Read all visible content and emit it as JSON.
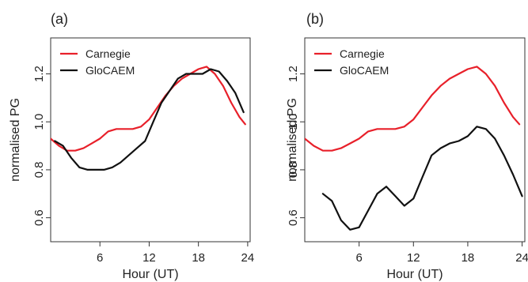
{
  "chart_data": [
    {
      "type": "line",
      "panel_label": "(a)",
      "xlabel": "Hour (UT)",
      "ylabel": "normalised PG",
      "xlim": [
        0,
        24.3
      ],
      "ylim": [
        0.5,
        1.35
      ],
      "xticks": [
        6,
        12,
        18,
        24
      ],
      "yticks": [
        0.6,
        0.8,
        1.0,
        1.2
      ],
      "xtick_labels": [
        "6",
        "12",
        "18",
        "24"
      ],
      "ytick_labels": [
        "0.6",
        "0.8",
        "1.0",
        "1.2"
      ],
      "legend_position": "top-left",
      "grid": false,
      "series": [
        {
          "name": "Carnegie",
          "color": "#e8202a",
          "x": [
            0,
            1,
            2,
            3,
            4,
            5,
            6,
            7,
            8,
            9,
            10,
            11,
            12,
            13,
            14,
            15,
            16,
            17,
            18,
            19,
            20,
            21,
            22,
            23,
            23.7
          ],
          "y": [
            0.93,
            0.9,
            0.88,
            0.88,
            0.89,
            0.91,
            0.93,
            0.96,
            0.97,
            0.97,
            0.97,
            0.98,
            1.01,
            1.06,
            1.11,
            1.15,
            1.18,
            1.2,
            1.22,
            1.23,
            1.2,
            1.15,
            1.08,
            1.02,
            0.99
          ]
        },
        {
          "name": "GloCAEM",
          "color": "#111111",
          "x": [
            0.5,
            1.5,
            2.5,
            3.5,
            4.5,
            5.5,
            6.5,
            7.5,
            8.5,
            9.5,
            10.5,
            11.5,
            12.5,
            13.5,
            14.5,
            15.5,
            16.5,
            17.5,
            18.5,
            19.5,
            20.5,
            21.5,
            22.5,
            23.5
          ],
          "y": [
            0.92,
            0.9,
            0.85,
            0.81,
            0.8,
            0.8,
            0.8,
            0.81,
            0.83,
            0.86,
            0.89,
            0.92,
            1.0,
            1.08,
            1.13,
            1.18,
            1.2,
            1.2,
            1.2,
            1.22,
            1.21,
            1.17,
            1.12,
            1.04
          ]
        }
      ]
    },
    {
      "type": "line",
      "panel_label": "(b)",
      "xlabel": "Hour (UT)",
      "ylabel": "normalised PG",
      "xlim": [
        0,
        24.3
      ],
      "ylim": [
        0.5,
        1.35
      ],
      "xticks": [
        6,
        12,
        18,
        24
      ],
      "yticks": [
        0.6,
        0.8,
        1.0,
        1.2
      ],
      "xtick_labels": [
        "6",
        "12",
        "18",
        "24"
      ],
      "ytick_labels": [
        "0.6",
        "0.8",
        "1.0",
        "1.2"
      ],
      "legend_position": "top-left",
      "grid": false,
      "series": [
        {
          "name": "Carnegie",
          "color": "#e8202a",
          "x": [
            0,
            1,
            2,
            3,
            4,
            5,
            6,
            7,
            8,
            9,
            10,
            11,
            12,
            13,
            14,
            15,
            16,
            17,
            18,
            19,
            20,
            21,
            22,
            23,
            23.7
          ],
          "y": [
            0.93,
            0.9,
            0.88,
            0.88,
            0.89,
            0.91,
            0.93,
            0.96,
            0.97,
            0.97,
            0.97,
            0.98,
            1.01,
            1.06,
            1.11,
            1.15,
            1.18,
            1.2,
            1.22,
            1.23,
            1.2,
            1.15,
            1.08,
            1.02,
            0.99
          ]
        },
        {
          "name": "GloCAEM",
          "color": "#111111",
          "x": [
            2,
            3,
            4,
            5,
            6,
            7,
            8,
            9,
            10,
            11,
            12,
            13,
            14,
            15,
            16,
            17,
            18,
            19,
            20,
            21,
            22,
            23,
            24
          ],
          "y": [
            0.7,
            0.67,
            0.59,
            0.55,
            0.56,
            0.63,
            0.7,
            0.73,
            0.69,
            0.65,
            0.68,
            0.77,
            0.86,
            0.89,
            0.91,
            0.92,
            0.94,
            0.98,
            0.97,
            0.93,
            0.86,
            0.78,
            0.69
          ]
        }
      ]
    }
  ]
}
